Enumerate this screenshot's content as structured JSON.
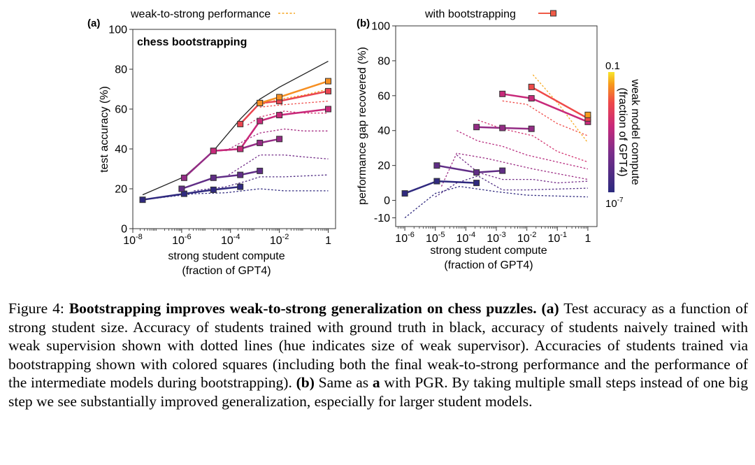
{
  "chart_data": [
    {
      "id": "a",
      "type": "line",
      "panel_label": "(a)",
      "title": "chess bootstrapping",
      "legend_label": "weak-to-strong performance",
      "xlabel": "strong student compute",
      "xlabel2": "(fraction of GPT4)",
      "ylabel": "test accuracy (%)",
      "xscale": "log",
      "xlim_log10": [
        -8,
        0.3
      ],
      "ylim": [
        0,
        100
      ],
      "yticks": [
        0,
        20,
        40,
        60,
        80,
        100
      ],
      "xticks": [
        {
          "v": -8,
          "label": "10",
          "exp": "-8"
        },
        {
          "v": -6,
          "label": "10",
          "exp": "-6"
        },
        {
          "v": -4,
          "label": "10",
          "exp": "-4"
        },
        {
          "v": -2,
          "label": "10",
          "exp": "-2"
        },
        {
          "v": 0,
          "label": "1",
          "exp": ""
        }
      ],
      "ground_truth": {
        "x": [
          -7.6,
          -5.9,
          -4.7,
          -3.6,
          -2.8,
          -2.0,
          0.0
        ],
        "y": [
          17,
          26,
          39,
          55,
          65,
          71,
          84
        ]
      },
      "weak_supervision": [
        {
          "c": 0.02,
          "x": [
            -7.6,
            -5.5,
            -4.2,
            -2.8,
            -1.8,
            0.0
          ],
          "y": [
            14.5,
            17.5,
            18,
            20,
            19,
            19
          ]
        },
        {
          "c": 0.15,
          "x": [
            -5.5,
            -4.2,
            -3.3,
            -2.8,
            -1.8,
            0.0
          ],
          "y": [
            19,
            21,
            24,
            26,
            26,
            27
          ]
        },
        {
          "c": 0.3,
          "x": [
            -4.2,
            -3.3,
            -2.8,
            -1.8,
            -1.0,
            0.0
          ],
          "y": [
            26,
            33,
            37,
            37,
            36,
            35
          ]
        },
        {
          "c": 0.45,
          "x": [
            -4.2,
            -3.3,
            -2.8,
            -1.8,
            -1.0,
            0.0
          ],
          "y": [
            39,
            45,
            48,
            50,
            49,
            49
          ]
        },
        {
          "c": 0.6,
          "x": [
            -3.3,
            -2.8,
            -1.8,
            -1.0,
            0.0
          ],
          "y": [
            52,
            56,
            59,
            58,
            58
          ]
        },
        {
          "c": 0.75,
          "x": [
            -2.8,
            -2.0,
            -1.0,
            0.0
          ],
          "y": [
            61,
            62,
            63,
            64
          ]
        },
        {
          "c": 0.9,
          "x": [
            -2.8,
            -2.0,
            -1.0,
            0.0
          ],
          "y": [
            62,
            65,
            67,
            70
          ]
        }
      ],
      "bootstrapping": [
        {
          "c": 0.02,
          "x": [
            -7.6,
            -5.9,
            -4.7,
            -3.6
          ],
          "y": [
            14.5,
            17.5,
            19.5,
            21
          ]
        },
        {
          "c": 0.22,
          "x": [
            -6.0,
            -4.7,
            -3.6,
            -2.8
          ],
          "y": [
            20,
            25.5,
            27,
            29
          ]
        },
        {
          "c": 0.4,
          "x": [
            -5.9,
            -4.7,
            -3.6,
            -2.8,
            -2.0
          ],
          "y": [
            25.5,
            39,
            40,
            43,
            45
          ]
        },
        {
          "c": 0.55,
          "x": [
            -4.7,
            -3.6,
            -2.8,
            -2.0,
            0.0
          ],
          "y": [
            39,
            40,
            54,
            57,
            60
          ]
        },
        {
          "c": 0.72,
          "x": [
            -3.6,
            -2.8,
            -2.0,
            0.0
          ],
          "y": [
            52.5,
            63,
            64,
            69
          ]
        },
        {
          "c": 0.88,
          "x": [
            -2.8,
            -2.0,
            0.0
          ],
          "y": [
            63,
            66,
            74
          ]
        }
      ]
    },
    {
      "id": "b",
      "type": "line",
      "panel_label": "(b)",
      "legend_label": "with bootstrapping",
      "xlabel": "strong student compute",
      "xlabel2": "(fraction of GPT4)",
      "ylabel": "performance gap recovered (%)",
      "xscale": "log",
      "xlim_log10": [
        -6.3,
        0.3
      ],
      "ylim": [
        -15,
        100
      ],
      "yticks": [
        -10,
        0,
        20,
        40,
        60,
        80,
        100
      ],
      "xticks": [
        {
          "v": -6,
          "label": "10",
          "exp": "-6"
        },
        {
          "v": -5,
          "label": "10",
          "exp": "-5"
        },
        {
          "v": -4,
          "label": "10",
          "exp": "-4"
        },
        {
          "v": -3,
          "label": "10",
          "exp": "-3"
        },
        {
          "v": -2,
          "label": "10",
          "exp": "-2"
        },
        {
          "v": -1,
          "label": "10",
          "exp": "-1"
        },
        {
          "v": 0,
          "label": "1",
          "exp": ""
        }
      ],
      "weak_supervision": [
        {
          "c": 0.02,
          "x": [
            -6.0,
            -5.0,
            -4.2,
            -3.0,
            -2.0,
            0.0
          ],
          "y": [
            -10,
            4,
            8,
            5,
            3,
            2
          ]
        },
        {
          "c": 0.15,
          "x": [
            -5.0,
            -4.3,
            -3.6,
            -2.8,
            -2.0,
            0.0
          ],
          "y": [
            2,
            10,
            14,
            6,
            6,
            7
          ]
        },
        {
          "c": 0.3,
          "x": [
            -4.3,
            -3.6,
            -2.8,
            -1.8,
            -1.0,
            0.0
          ],
          "y": [
            26,
            16,
            12,
            12,
            10,
            11
          ]
        },
        {
          "c": 0.42,
          "x": [
            -4.8,
            -4.3,
            -3.3,
            -2.8,
            -1.8,
            0.0
          ],
          "y": [
            8,
            27,
            24,
            22,
            18,
            12
          ]
        },
        {
          "c": 0.5,
          "x": [
            -4.3,
            -3.6,
            -2.8,
            -2.0,
            -1.0,
            0.0
          ],
          "y": [
            40,
            34,
            31,
            26,
            22,
            18
          ]
        },
        {
          "c": 0.6,
          "x": [
            -3.6,
            -2.8,
            -1.8,
            -1.0,
            0.0
          ],
          "y": [
            46,
            41,
            37,
            28,
            22
          ]
        },
        {
          "c": 0.75,
          "x": [
            -2.8,
            -2.0,
            -1.0,
            0.0
          ],
          "y": [
            57,
            55,
            44,
            37
          ]
        },
        {
          "c": 0.92,
          "x": [
            -1.8,
            -1.0,
            0.0
          ],
          "y": [
            72,
            56,
            33
          ]
        }
      ],
      "bootstrapping": [
        {
          "c": 0.02,
          "x": [
            -6.0,
            -4.95,
            -3.65
          ],
          "y": [
            4,
            11,
            10
          ]
        },
        {
          "c": 0.22,
          "x": [
            -4.95,
            -3.65,
            -2.8
          ],
          "y": [
            20,
            16,
            17
          ]
        },
        {
          "c": 0.4,
          "x": [
            -3.65,
            -2.8,
            -1.85
          ],
          "y": [
            42,
            41.5,
            41
          ]
        },
        {
          "c": 0.55,
          "x": [
            -2.8,
            -1.85,
            0.0
          ],
          "y": [
            61,
            58.5,
            45
          ]
        },
        {
          "c": 0.75,
          "x": [
            -1.85,
            0.0
          ],
          "y": [
            65,
            47
          ]
        },
        {
          "c": 0.9,
          "x": [
            0.0
          ],
          "y": [
            49
          ]
        }
      ]
    }
  ],
  "colorbar": {
    "top_label": "0.1",
    "bottom_label": "10",
    "bottom_exp": "-7",
    "title1": "weak model compute",
    "title2": "(fraction of GPT4)"
  },
  "caption": {
    "lead": "Figure 4: ",
    "bold": "Bootstrapping improves weak-to-strong generalization on chess puzzles.",
    "a_label": " (a)",
    "a_text": " Test accuracy as a function of strong student size. Accuracy of students trained with ground truth in black, accuracy of students naively trained with weak supervision shown with dotted lines (hue indicates size of weak supervisor). Accuracies of students trained via bootstrapping shown with colored squares (including both the final weak-to-strong performance and the performance of the intermediate models during bootstrapping). ",
    "b_label": "(b)",
    "b_text_1": " Same as ",
    "b_ref": "a",
    "b_text_2": " with PGR. By taking multiple small steps instead of one big step we see substantially improved generalization, especially for larger student models."
  }
}
